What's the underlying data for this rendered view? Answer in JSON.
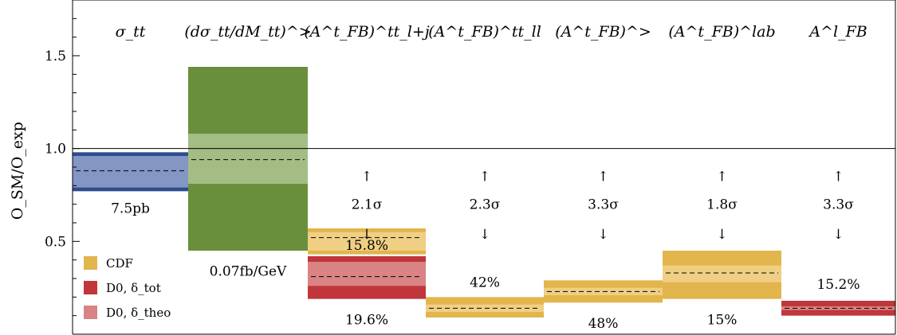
{
  "chart_data": {
    "type": "bar",
    "ylabel": "O_SM/O_exp",
    "ylim": [
      0.0,
      1.8
    ],
    "yticks": [
      0.5,
      1.0,
      1.5
    ],
    "ytick_labels": [
      "0.5",
      "1.0",
      "1.5"
    ],
    "reference_line": 1.0,
    "categories": [
      {
        "label": "σ_tt"
      },
      {
        "label": "(dσ_tt/dM_tt)^>"
      },
      {
        "label": "(A^t_FB)^tt_l+j"
      },
      {
        "label": "(A^t_FB)^tt_ll"
      },
      {
        "label": "(A^t_FB)^>"
      },
      {
        "label": "(A^t_FB)^lab"
      },
      {
        "label": "A^l_FB"
      }
    ],
    "boxes": [
      {
        "cat": 0,
        "experiment": "other",
        "central": 0.88,
        "total": [
          0.77,
          0.98
        ],
        "theo": [
          0.79,
          0.96
        ],
        "color_total": "#2e4d8f",
        "color_theo": "#8396c4"
      },
      {
        "cat": 1,
        "experiment": "other",
        "central": 0.94,
        "total": [
          0.45,
          1.44
        ],
        "theo": [
          0.81,
          1.08
        ],
        "color_total": "#6a8f3c",
        "color_theo": "#a3bd84"
      },
      {
        "cat": 2,
        "experiment": "CDF",
        "central": 0.52,
        "total": [
          0.43,
          0.57
        ],
        "theo": [
          0.45,
          0.55
        ],
        "color_total": "#e2b54d",
        "color_theo": "#efcf83"
      },
      {
        "cat": 2,
        "experiment": "D0",
        "central": 0.31,
        "total": [
          0.19,
          0.42
        ],
        "theo": [
          0.26,
          0.39
        ],
        "color_total": "#c0363b",
        "color_theo": "#d98384"
      },
      {
        "cat": 3,
        "experiment": "CDF",
        "central": 0.14,
        "total": [
          0.09,
          0.2
        ],
        "theo": [
          0.12,
          0.16
        ],
        "color_total": "#e2b54d",
        "color_theo": "#efcf83"
      },
      {
        "cat": 4,
        "experiment": "CDF",
        "central": 0.23,
        "total": [
          0.17,
          0.29
        ],
        "theo": [
          0.21,
          0.25
        ],
        "color_total": "#e2b54d",
        "color_theo": "#efcf83"
      },
      {
        "cat": 5,
        "experiment": "CDF",
        "central": 0.33,
        "total": [
          0.19,
          0.45
        ],
        "theo": [
          0.28,
          0.37
        ],
        "color_total": "#e2b54d",
        "color_theo": "#efcf83"
      },
      {
        "cat": 6,
        "experiment": "D0",
        "central": 0.14,
        "total": [
          0.1,
          0.18
        ],
        "theo": [
          0.13,
          0.15
        ],
        "color_total": "#c0363b",
        "color_theo": "#d98384"
      }
    ],
    "value_labels": [
      {
        "cat": 0,
        "text": "7.5pb",
        "y": 0.68
      },
      {
        "cat": 1,
        "text": "0.07fb/GeV",
        "y": 0.34
      },
      {
        "cat": 2,
        "text": "15.8%",
        "y": 0.48
      },
      {
        "cat": 2,
        "text": "19.6%",
        "y": 0.08
      },
      {
        "cat": 3,
        "text": "42%",
        "y": 0.28
      },
      {
        "cat": 4,
        "text": "48%",
        "y": 0.06
      },
      {
        "cat": 5,
        "text": "15%",
        "y": 0.08
      },
      {
        "cat": 6,
        "text": "15.2%",
        "y": 0.27
      }
    ],
    "tension_labels": [
      {
        "cat": 2,
        "text": "2.1σ"
      },
      {
        "cat": 3,
        "text": "2.3σ"
      },
      {
        "cat": 4,
        "text": "3.3σ"
      },
      {
        "cat": 5,
        "text": "1.8σ"
      },
      {
        "cat": 6,
        "text": "3.3σ"
      }
    ],
    "legend": {
      "placement": "bottom-left",
      "entries": [
        {
          "label": "CDF",
          "color": "#e2b54d"
        },
        {
          "label": "D0, δ_tot",
          "color": "#c0363b"
        },
        {
          "label": "D0, δ_theo",
          "color": "#d98384"
        }
      ]
    },
    "grid": false
  }
}
